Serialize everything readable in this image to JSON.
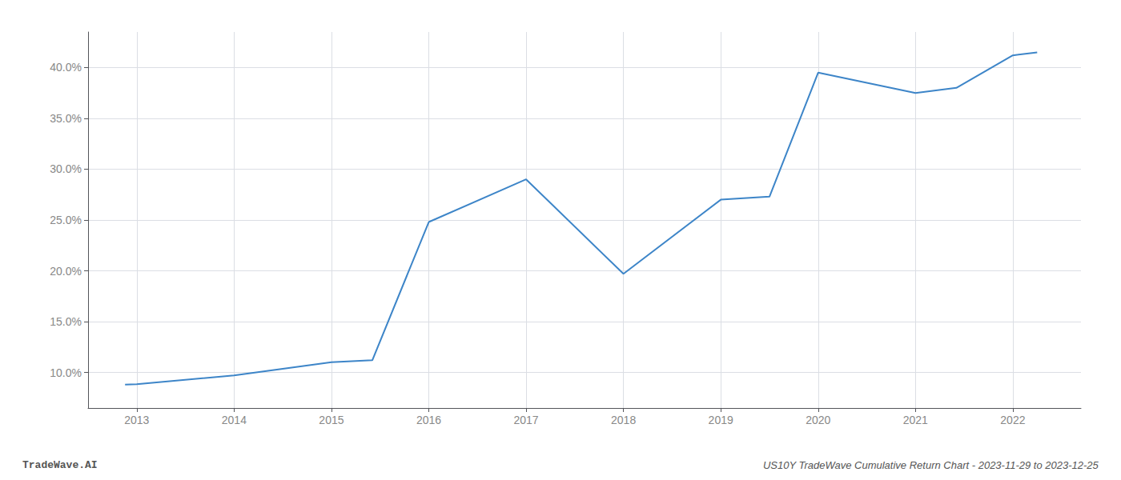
{
  "chart_data": {
    "type": "line",
    "title": "US10Y TradeWave Cumulative Return Chart - 2023-11-29 to 2023-12-25",
    "annotations": [
      "TradeWave.AI"
    ],
    "x": [
      2012.88,
      2013.0,
      2014.0,
      2015.0,
      2015.42,
      2016.0,
      2017.0,
      2018.0,
      2019.0,
      2019.5,
      2020.0,
      2021.0,
      2021.42,
      2022.0,
      2022.25
    ],
    "values": [
      8.8,
      8.85,
      9.7,
      11.0,
      11.2,
      24.8,
      29.0,
      19.7,
      27.0,
      27.3,
      39.5,
      37.5,
      38.0,
      41.2,
      41.5
    ],
    "color": "#3d85c8",
    "xlim": [
      2012.5,
      2022.7
    ],
    "xticks": [
      2013,
      2014,
      2015,
      2016,
      2017,
      2018,
      2019,
      2020,
      2021,
      2022
    ],
    "ylim": [
      6.5,
      43.5
    ],
    "yticks": [
      {
        "value": 10.0,
        "label": "10.0%"
      },
      {
        "value": 15.0,
        "label": "15.0%"
      },
      {
        "value": 20.0,
        "label": "20.0%"
      },
      {
        "value": 25.0,
        "label": "25.0%"
      },
      {
        "value": 30.0,
        "label": "30.0%"
      },
      {
        "value": 35.0,
        "label": "35.0%"
      },
      {
        "value": 40.0,
        "label": "40.0%"
      }
    ],
    "grid": true
  }
}
